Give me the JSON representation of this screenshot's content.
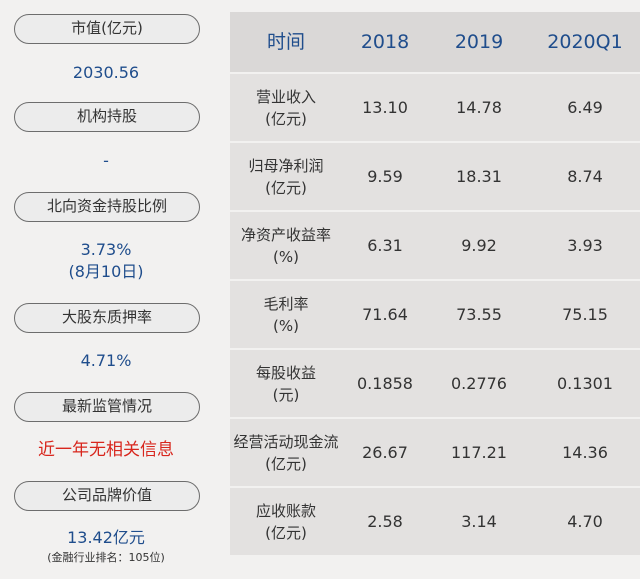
{
  "left_panel": {
    "items": [
      {
        "label": "市值(亿元)",
        "value": "2030.56"
      },
      {
        "label": "机构持股",
        "value": "-"
      },
      {
        "label": "北向资金持股比例",
        "value": "3.73%",
        "value2": "(8月10日)"
      },
      {
        "label": "大股东质押率",
        "value": "4.71%"
      },
      {
        "label": "最新监管情况",
        "value": "近一年无相关信息"
      },
      {
        "label": "公司品牌价值",
        "value": "13.42亿元",
        "note": "(金融行业排名：105位)"
      }
    ]
  },
  "table": {
    "headers": [
      "时间",
      "2018",
      "2019",
      "2020Q1"
    ],
    "rows": [
      {
        "metric": "营业收入",
        "unit": "(亿元)",
        "values": [
          "13.10",
          "14.78",
          "6.49"
        ]
      },
      {
        "metric": "归母净利润",
        "unit": "(亿元)",
        "values": [
          "9.59",
          "18.31",
          "8.74"
        ]
      },
      {
        "metric": "净资产收益率",
        "unit": "(%)",
        "values": [
          "6.31",
          "9.92",
          "3.93"
        ]
      },
      {
        "metric": "毛利率",
        "unit": "(%)",
        "values": [
          "71.64",
          "73.55",
          "75.15"
        ]
      },
      {
        "metric": "每股收益",
        "unit": "(元)",
        "values": [
          "0.1858",
          "0.2776",
          "0.1301"
        ]
      },
      {
        "metric": "经营活动现金流",
        "unit": "(亿元)",
        "values": [
          "26.67",
          "117.21",
          "14.36"
        ]
      },
      {
        "metric": "应收账款",
        "unit": "(亿元)",
        "values": [
          "2.58",
          "3.14",
          "4.70"
        ]
      }
    ]
  },
  "colors": {
    "value_blue": "#1f4d8c",
    "alert_red": "#d8261d",
    "background": "#f2f1f0"
  }
}
